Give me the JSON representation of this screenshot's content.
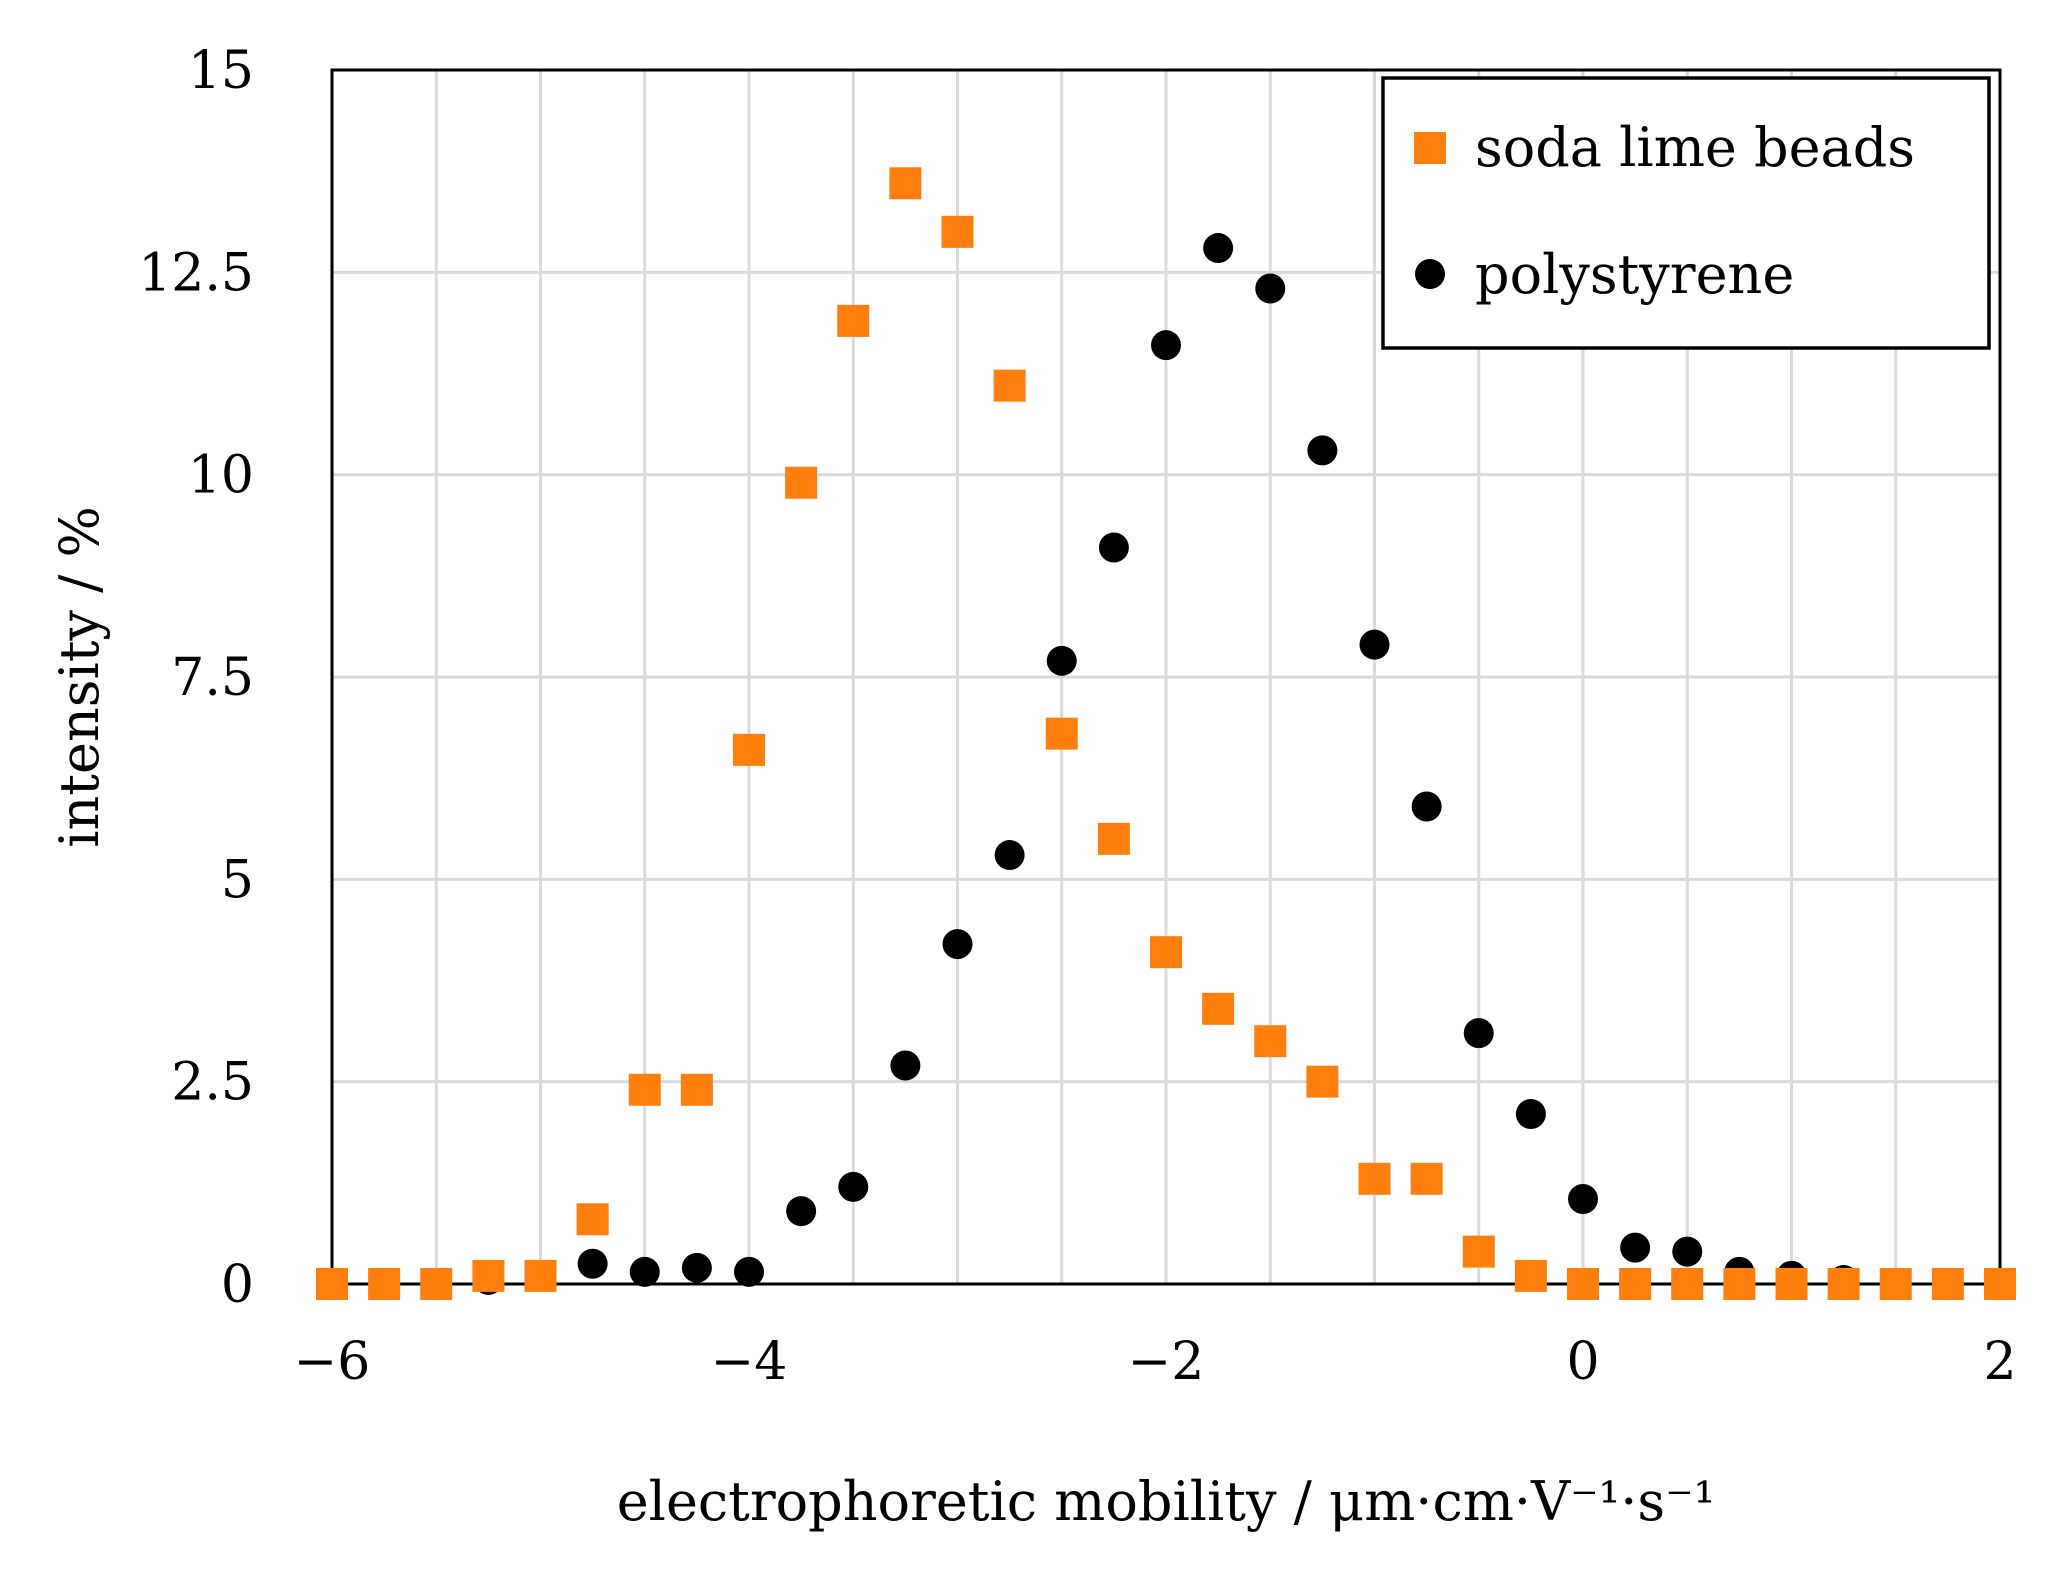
{
  "chart_data": {
    "type": "scatter",
    "title": "",
    "xlabel": "electrophoretic mobility / μm·cm·V⁻¹·s⁻¹",
    "ylabel": "intensity / %",
    "xlim": [
      -6,
      2
    ],
    "ylim": [
      0,
      15
    ],
    "xticks": [
      -6,
      -4,
      -2,
      0,
      2
    ],
    "xtick_labels": [
      "−6",
      "−4",
      "−2",
      "0",
      "2"
    ],
    "yticks": [
      0,
      2.5,
      5,
      7.5,
      10,
      12.5,
      15
    ],
    "ytick_labels": [
      "0",
      "2.5",
      "5",
      "7.5",
      "10",
      "12.5",
      "15"
    ],
    "grid": true,
    "legend_position": "top-right",
    "series": [
      {
        "name": "soda lime beads",
        "marker": "square",
        "color": "#ff7f0e",
        "x": [
          -6,
          -5.75,
          -5.5,
          -5.25,
          -5,
          -4.75,
          -4.5,
          -4.25,
          -4,
          -3.75,
          -3.5,
          -3.25,
          -3,
          -2.75,
          -2.5,
          -2.25,
          -2,
          -1.75,
          -1.5,
          -1.25,
          -1,
          -0.75,
          -0.5,
          -0.25,
          0,
          0.25,
          0.5,
          0.75,
          1,
          1.25,
          1.5,
          1.75,
          2
        ],
        "y": [
          0,
          0,
          0,
          0.1,
          0.1,
          0.8,
          2.4,
          2.4,
          6.6,
          9.9,
          11.9,
          13.6,
          13.0,
          11.1,
          6.8,
          5.5,
          4.1,
          3.4,
          3.0,
          2.5,
          1.3,
          1.3,
          0.4,
          0.1,
          0,
          0,
          0,
          0,
          0,
          0,
          0,
          0,
          0
        ]
      },
      {
        "name": "polystyrene",
        "marker": "circle",
        "color": "#000000",
        "x": [
          -5.25,
          -5,
          -4.75,
          -4.5,
          -4.25,
          -4,
          -3.75,
          -3.5,
          -3.25,
          -3,
          -2.75,
          -2.5,
          -2.25,
          -2,
          -1.75,
          -1.5,
          -1.25,
          -1,
          -0.75,
          -0.5,
          -0.25,
          0,
          0.25,
          0.5,
          0.75,
          1,
          1.25
        ],
        "y": [
          0.05,
          0.1,
          0.25,
          0.15,
          0.2,
          0.15,
          0.9,
          1.2,
          2.7,
          4.2,
          5.3,
          7.7,
          9.1,
          11.6,
          12.8,
          12.3,
          10.3,
          7.9,
          5.9,
          3.1,
          2.1,
          1.05,
          0.45,
          0.4,
          0.15,
          0.1,
          0.05
        ]
      }
    ]
  },
  "colors": {
    "orange": "#ff7f0e",
    "black": "#000000",
    "grid": "#d9d9d9"
  }
}
